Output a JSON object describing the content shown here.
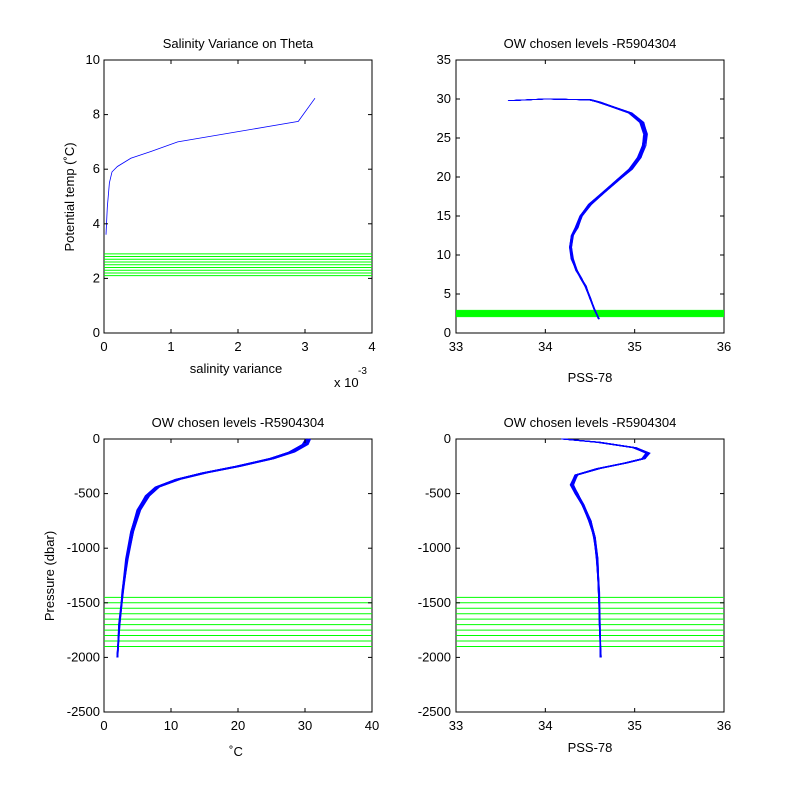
{
  "colors": {
    "profile": "#0000ff",
    "levels": "#00ff00",
    "axes": "#000000"
  },
  "chart_data": [
    {
      "type": "line",
      "title": "Salinity Variance on Theta",
      "xlabel": "salinity variance",
      "ylabel": "Potential temp (˚C)",
      "x_multiplier_label": "x 10",
      "x_multiplier_exponent": "-3",
      "xlim": [
        0,
        4
      ],
      "ylim": [
        0,
        10
      ],
      "xticks": [
        0,
        1,
        2,
        3,
        4
      ],
      "yticks": [
        0,
        2,
        4,
        6,
        8,
        10
      ],
      "xtick_labels": [
        "0",
        "1",
        "2",
        "3",
        "4"
      ],
      "ytick_labels": [
        "0",
        "2",
        "4",
        "6",
        "8",
        "10"
      ],
      "grid": false,
      "series": [
        {
          "x": [
            0.03,
            0.05,
            0.08,
            0.12,
            0.2,
            0.4,
            0.7,
            1.1,
            2.9,
            3.15
          ],
          "y": [
            3.6,
            4.6,
            5.5,
            5.9,
            6.1,
            6.4,
            6.65,
            7.0,
            7.75,
            8.6
          ]
        }
      ],
      "levels": [
        2.1,
        2.2,
        2.3,
        2.4,
        2.5,
        2.6,
        2.7,
        2.8,
        2.9
      ]
    },
    {
      "type": "line",
      "title": "OW chosen levels -R5904304",
      "xlabel": "PSS-78",
      "ylabel": "",
      "xlim": [
        33,
        36
      ],
      "ylim": [
        0,
        35
      ],
      "xticks": [
        33,
        34,
        35,
        36
      ],
      "yticks": [
        0,
        5,
        10,
        15,
        20,
        25,
        30,
        35
      ],
      "xtick_labels": [
        "33",
        "34",
        "35",
        "36"
      ],
      "ytick_labels": [
        "0",
        "5",
        "10",
        "15",
        "20",
        "25",
        "30",
        "35"
      ],
      "grid": false,
      "series": [
        {
          "x": [
            34.6,
            34.55,
            34.5,
            34.45,
            34.4,
            34.35,
            34.3,
            34.28,
            34.3,
            34.35,
            34.4,
            34.5,
            34.65,
            34.8,
            34.95,
            35.05,
            35.1,
            35.12,
            35.08,
            34.95,
            34.75,
            34.6,
            34.5,
            34.0,
            33.6
          ],
          "y": [
            1.8,
            3.0,
            4.5,
            6.0,
            7.0,
            8.0,
            9.5,
            11.0,
            12.5,
            13.5,
            15.0,
            16.5,
            18.0,
            19.5,
            21.0,
            22.5,
            24.0,
            25.5,
            27.0,
            28.2,
            29.0,
            29.6,
            29.9,
            30.0,
            29.8
          ]
        }
      ],
      "levels": [
        2.1,
        2.2,
        2.3,
        2.4,
        2.5,
        2.6,
        2.7,
        2.8,
        2.9
      ]
    },
    {
      "type": "line",
      "title": "OW chosen levels -R5904304",
      "xlabel": "˚C",
      "ylabel": "Pressure (dbar)",
      "xlim": [
        0,
        40
      ],
      "ylim": [
        -2500,
        0
      ],
      "xticks": [
        0,
        10,
        20,
        30,
        40
      ],
      "yticks": [
        -2500,
        -2000,
        -1500,
        -1000,
        -500,
        0
      ],
      "xtick_labels": [
        "0",
        "10",
        "20",
        "30",
        "40"
      ],
      "ytick_labels": [
        "-2500",
        "-2000",
        "-1500",
        "-1000",
        "-500",
        "0"
      ],
      "grid": false,
      "series": [
        {
          "x": [
            2.0,
            2.3,
            2.8,
            3.4,
            4.2,
            5.2,
            6.5,
            8.0,
            11.0,
            15.0,
            20.0,
            25.0,
            28.0,
            30.0,
            30.5
          ],
          "y": [
            -2000,
            -1700,
            -1400,
            -1100,
            -850,
            -650,
            -520,
            -440,
            -370,
            -310,
            -250,
            -180,
            -120,
            -50,
            0
          ]
        }
      ],
      "levels": [
        -1450,
        -1500,
        -1550,
        -1600,
        -1650,
        -1700,
        -1750,
        -1800,
        -1850,
        -1900
      ]
    },
    {
      "type": "line",
      "title": "OW chosen levels -R5904304",
      "xlabel": "PSS-78",
      "ylabel": "",
      "xlim": [
        33,
        36
      ],
      "ylim": [
        -2500,
        0
      ],
      "xticks": [
        33,
        34,
        35,
        36
      ],
      "yticks": [
        -2500,
        -2000,
        -1500,
        -1000,
        -500,
        0
      ],
      "xtick_labels": [
        "33",
        "34",
        "35",
        "36"
      ],
      "ytick_labels": [
        "-2500",
        "-2000",
        "-1500",
        "-1000",
        "-500",
        "0"
      ],
      "grid": false,
      "series": [
        {
          "x": [
            34.62,
            34.61,
            34.6,
            34.58,
            34.55,
            34.5,
            34.42,
            34.35,
            34.3,
            34.35,
            34.6,
            34.9,
            35.1,
            35.15,
            35.0,
            34.6,
            34.2
          ],
          "y": [
            -2000,
            -1700,
            -1400,
            -1100,
            -900,
            -750,
            -600,
            -500,
            -420,
            -330,
            -270,
            -220,
            -180,
            -130,
            -80,
            -30,
            0
          ]
        }
      ],
      "levels": [
        -1450,
        -1500,
        -1550,
        -1600,
        -1650,
        -1700,
        -1750,
        -1800,
        -1850,
        -1900
      ]
    }
  ]
}
